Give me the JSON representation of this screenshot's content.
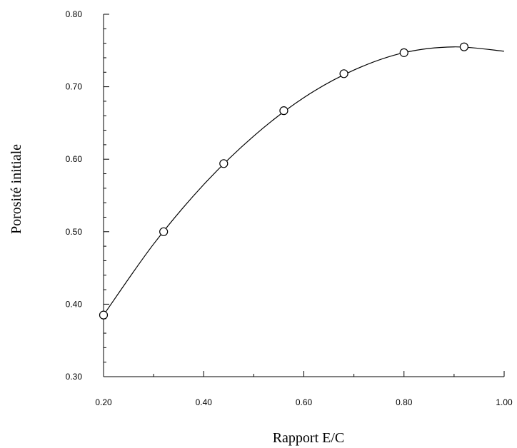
{
  "chart_data": {
    "type": "scatter",
    "title": "",
    "xlabel": "Rapport E/C",
    "ylabel": "Porosité initiale",
    "xlim": [
      0.2,
      1.0
    ],
    "ylim": [
      0.3,
      0.8
    ],
    "x_ticks": [
      "0.20",
      "0.40",
      "0.60",
      "0.80",
      "1.00"
    ],
    "y_ticks": [
      "0.30",
      "0.40",
      "0.50",
      "0.60",
      "0.70",
      "0.80"
    ],
    "grid": false,
    "legend": "none",
    "series": [
      {
        "marker": "open-circle",
        "x": [
          0.2,
          0.32,
          0.44,
          0.56,
          0.68,
          0.8,
          0.92
        ],
        "y": [
          0.385,
          0.5,
          0.594,
          0.667,
          0.718,
          0.747,
          0.755
        ]
      }
    ],
    "fit_curve": {
      "type": "polynomial",
      "x": [
        0.2,
        0.3,
        0.4,
        0.5,
        0.6,
        0.7,
        0.8,
        0.9,
        1.0
      ],
      "y": [
        0.385,
        0.483,
        0.565,
        0.632,
        0.685,
        0.723,
        0.747,
        0.755,
        0.749
      ]
    },
    "line_color": "#000000"
  }
}
